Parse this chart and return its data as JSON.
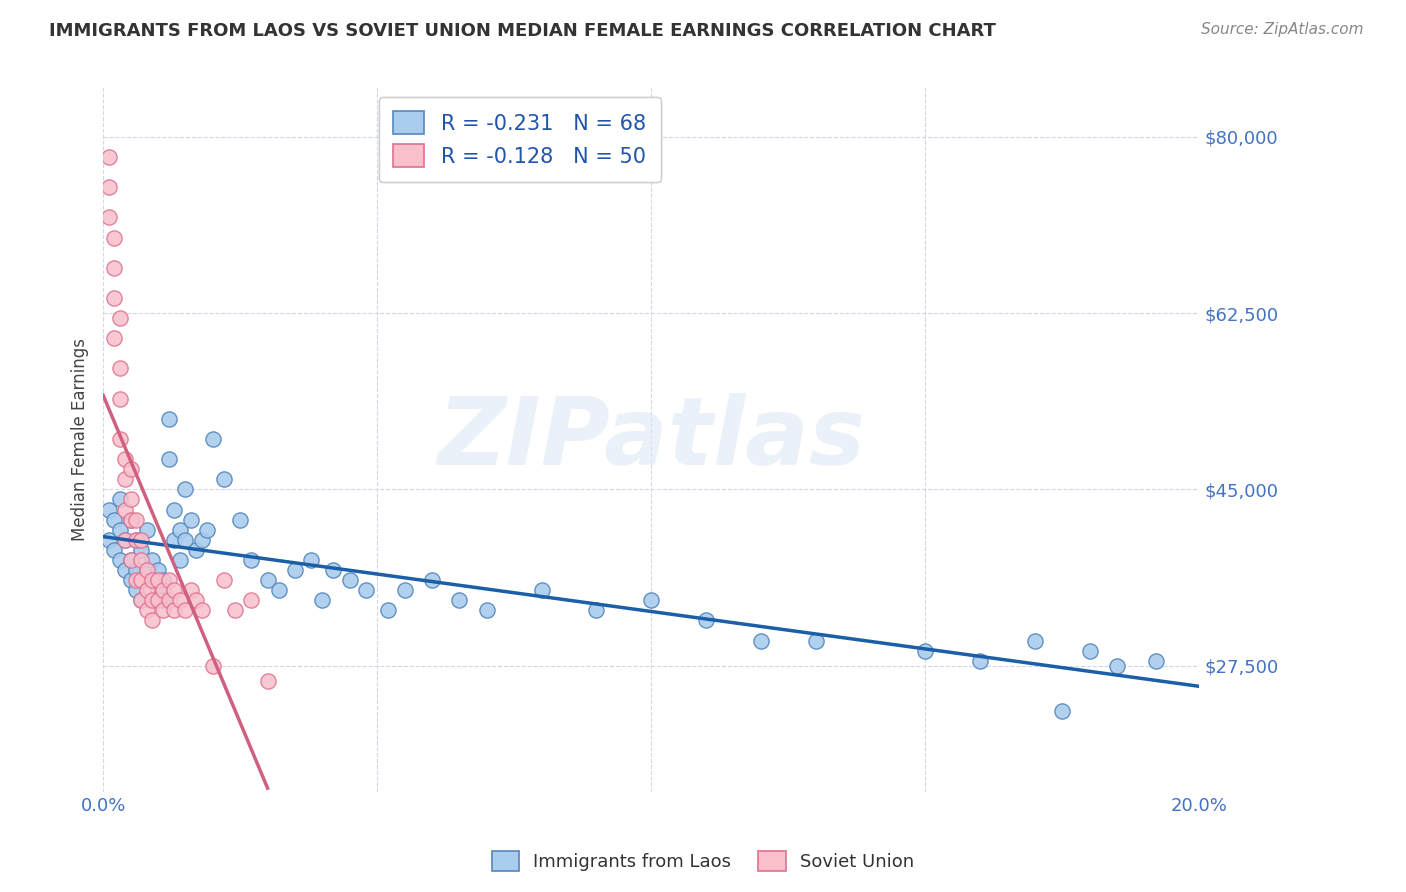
{
  "title": "IMMIGRANTS FROM LAOS VS SOVIET UNION MEDIAN FEMALE EARNINGS CORRELATION CHART",
  "source": "Source: ZipAtlas.com",
  "ylabel": "Median Female Earnings",
  "watermark": "ZIPatlas",
  "legend_entries": [
    {
      "label": "R = -0.231   N = 68",
      "facecolor": "#aaccee",
      "edgecolor": "#5588bb"
    },
    {
      "label": "R = -0.128   N = 50",
      "facecolor": "#f9c0cc",
      "edgecolor": "#e07090"
    }
  ],
  "legend_bottom": [
    "Immigrants from Laos",
    "Soviet Union"
  ],
  "laos_facecolor": "#aaccee",
  "laos_edgecolor": "#5588bb",
  "soviet_facecolor": "#f9c0cc",
  "soviet_edgecolor": "#e07090",
  "laos_line_color": "#1a5fa8",
  "soviet_line_color": "#d06080",
  "soviet_dash_color": "#e8a0b0",
  "xlim": [
    0.0,
    0.2
  ],
  "ylim": [
    15000,
    85000
  ],
  "yticks": [
    27500,
    45000,
    62500,
    80000
  ],
  "ytick_labels": [
    "$27,500",
    "$45,000",
    "$62,500",
    "$80,000"
  ],
  "xtick_positions": [
    0.0,
    0.05,
    0.1,
    0.15,
    0.2
  ],
  "xtick_labels": [
    "0.0%",
    "",
    "",
    "",
    "20.0%"
  ],
  "laos_x": [
    0.001,
    0.001,
    0.002,
    0.002,
    0.003,
    0.003,
    0.003,
    0.004,
    0.004,
    0.005,
    0.005,
    0.005,
    0.006,
    0.006,
    0.006,
    0.007,
    0.007,
    0.007,
    0.008,
    0.008,
    0.009,
    0.009,
    0.01,
    0.01,
    0.011,
    0.011,
    0.012,
    0.012,
    0.013,
    0.013,
    0.014,
    0.014,
    0.015,
    0.015,
    0.016,
    0.017,
    0.018,
    0.019,
    0.02,
    0.022,
    0.025,
    0.027,
    0.03,
    0.032,
    0.035,
    0.038,
    0.04,
    0.042,
    0.045,
    0.048,
    0.052,
    0.055,
    0.06,
    0.065,
    0.07,
    0.08,
    0.09,
    0.1,
    0.11,
    0.12,
    0.13,
    0.15,
    0.16,
    0.17,
    0.175,
    0.18,
    0.185,
    0.192
  ],
  "laos_y": [
    40000,
    43000,
    39000,
    42000,
    38000,
    41000,
    44000,
    37000,
    40000,
    36000,
    38000,
    42000,
    35000,
    37000,
    40000,
    34000,
    36000,
    39000,
    37000,
    41000,
    36000,
    38000,
    35000,
    37000,
    34000,
    36000,
    48000,
    52000,
    40000,
    43000,
    38000,
    41000,
    45000,
    40000,
    42000,
    39000,
    40000,
    41000,
    50000,
    46000,
    42000,
    38000,
    36000,
    35000,
    37000,
    38000,
    34000,
    37000,
    36000,
    35000,
    33000,
    35000,
    36000,
    34000,
    33000,
    35000,
    33000,
    34000,
    32000,
    30000,
    30000,
    29000,
    28000,
    30000,
    23000,
    29000,
    27500,
    28000
  ],
  "soviet_x": [
    0.001,
    0.001,
    0.001,
    0.002,
    0.002,
    0.002,
    0.002,
    0.003,
    0.003,
    0.003,
    0.003,
    0.004,
    0.004,
    0.004,
    0.004,
    0.005,
    0.005,
    0.005,
    0.005,
    0.006,
    0.006,
    0.006,
    0.007,
    0.007,
    0.007,
    0.007,
    0.008,
    0.008,
    0.008,
    0.009,
    0.009,
    0.009,
    0.01,
    0.01,
    0.011,
    0.011,
    0.012,
    0.012,
    0.013,
    0.013,
    0.014,
    0.015,
    0.016,
    0.017,
    0.018,
    0.02,
    0.022,
    0.024,
    0.027,
    0.03
  ],
  "soviet_y": [
    78000,
    75000,
    72000,
    70000,
    67000,
    64000,
    60000,
    57000,
    54000,
    50000,
    62000,
    48000,
    46000,
    43000,
    40000,
    47000,
    44000,
    42000,
    38000,
    42000,
    40000,
    36000,
    38000,
    36000,
    34000,
    40000,
    37000,
    35000,
    33000,
    36000,
    34000,
    32000,
    36000,
    34000,
    35000,
    33000,
    36000,
    34000,
    35000,
    33000,
    34000,
    33000,
    35000,
    34000,
    33000,
    27500,
    36000,
    33000,
    34000,
    26000
  ],
  "background_color": "#ffffff",
  "grid_color": "#d0d8e8",
  "title_color": "#333333",
  "axis_label_color": "#4472c4",
  "ytick_color": "#4472c4",
  "source_color": "#888888"
}
